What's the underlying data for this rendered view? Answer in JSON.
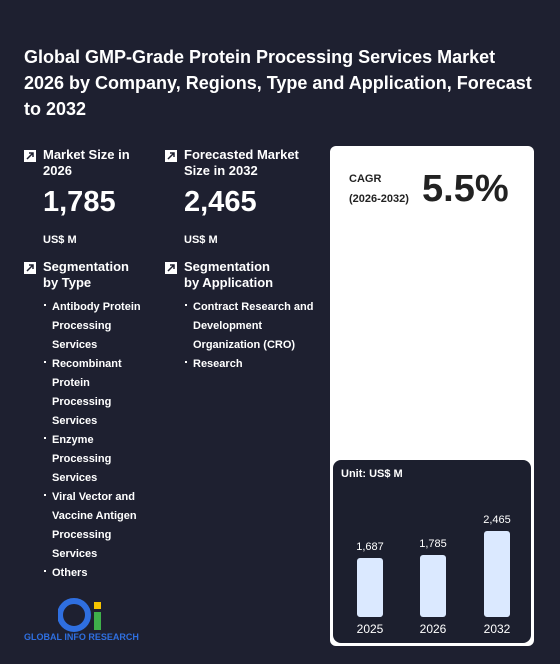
{
  "title": "Global GMP-Grade Protein Processing Services Market 2026 by Company, Regions, Type and Application, Forecast to 2032",
  "market_size": {
    "label": "Market Size in 2026",
    "value": "1,785",
    "unit": "US$ M"
  },
  "forecast": {
    "label": "Forecasted Market Size in 2032",
    "value": "2,465",
    "unit": "US$ M"
  },
  "segmentation_type": {
    "label": "Segmentation by Type",
    "items": [
      "Antibody Protein Processing Services",
      "Recombinant Protein Processing Services",
      "Enzyme Processing Services",
      "Viral Vector and Vaccine Antigen Processing Services",
      "Others"
    ]
  },
  "segmentation_application": {
    "label": "Segmentation by Application",
    "items": [
      "Contract Research and Development Organization (CRO)",
      "Research"
    ]
  },
  "cagr": {
    "label": "CAGR",
    "period": "(2026-2032)",
    "value": "5.5%"
  },
  "bar_chart": {
    "unit": "Unit: US$ M",
    "categories": [
      "2025",
      "2026",
      "2032"
    ],
    "values": [
      1687,
      1785,
      2465
    ],
    "value_labels": [
      "1,687",
      "1,785",
      "2,465"
    ]
  },
  "logo": "GLOBAL INFO RESEARCH"
}
